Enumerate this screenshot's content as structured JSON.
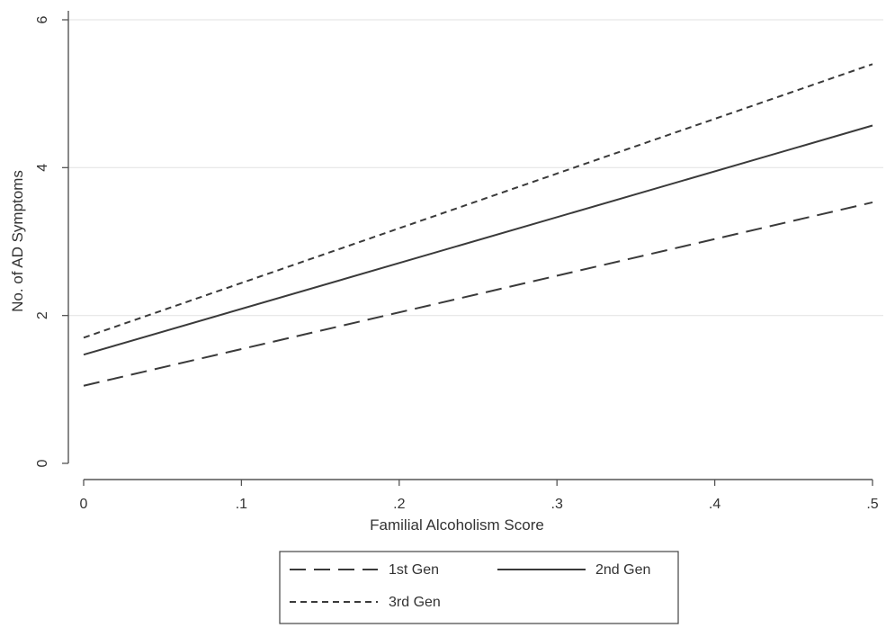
{
  "chart_data": {
    "type": "line",
    "title": "",
    "xlabel": "Familial Alcoholism Score",
    "ylabel": "No. of AD Symptoms",
    "xlim": [
      0,
      0.5
    ],
    "ylim": [
      0,
      6
    ],
    "grid": "horizontal",
    "legend_position": "bottom",
    "x_ticks": [
      {
        "value": 0,
        "label": "0"
      },
      {
        "value": 0.1,
        "label": ".1"
      },
      {
        "value": 0.2,
        "label": ".2"
      },
      {
        "value": 0.3,
        "label": ".3"
      },
      {
        "value": 0.4,
        "label": ".4"
      },
      {
        "value": 0.5,
        "label": ".5"
      }
    ],
    "y_ticks": [
      {
        "value": 0,
        "label": "0"
      },
      {
        "value": 2,
        "label": "2"
      },
      {
        "value": 4,
        "label": "4"
      },
      {
        "value": 6,
        "label": "6"
      }
    ],
    "series": [
      {
        "name": "1st Gen",
        "style": "long-dash",
        "x": [
          0,
          0.5
        ],
        "y": [
          1.05,
          3.53
        ]
      },
      {
        "name": "2nd Gen",
        "style": "solid",
        "x": [
          0,
          0.5
        ],
        "y": [
          1.47,
          4.57
        ]
      },
      {
        "name": "3rd Gen",
        "style": "short-dash",
        "x": [
          0,
          0.5
        ],
        "y": [
          1.7,
          5.4
        ]
      }
    ],
    "colors": {
      "lines": "#3a3a3a",
      "axis": "#555555",
      "grid": "#e6e6e6"
    }
  }
}
